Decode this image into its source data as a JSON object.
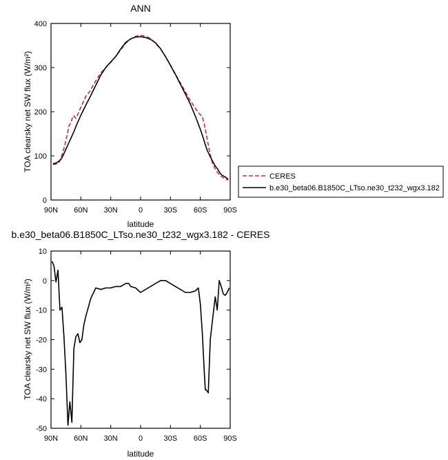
{
  "chart_data": [
    {
      "type": "line",
      "title": "ANN",
      "xlabel": "latitude",
      "ylabel": "TOA clearsky net SW flux (W/m²)",
      "xlim": [
        90,
        -90
      ],
      "ylim": [
        0,
        400
      ],
      "xticks": [
        90,
        60,
        30,
        0,
        -30,
        -60,
        -90
      ],
      "xtick_labels": [
        "90N",
        "60N",
        "30N",
        "0",
        "30S",
        "60S",
        "90S"
      ],
      "yticks": [
        0,
        100,
        200,
        300,
        400
      ],
      "ytick_labels": [
        "0",
        "100",
        "200",
        "300",
        "400"
      ],
      "grid": false,
      "legend": "right",
      "series": [
        {
          "name": "CERES",
          "color": "#d62728",
          "dash": "dashed",
          "x": [
            88,
            86,
            84,
            82,
            80,
            78,
            76,
            74,
            72,
            70,
            68,
            67,
            66,
            65,
            64,
            62,
            60,
            57,
            55,
            52,
            50,
            45,
            40,
            35,
            30,
            25,
            20,
            15,
            10,
            5,
            0,
            -5,
            -10,
            -15,
            -20,
            -25,
            -30,
            -35,
            -40,
            -45,
            -50,
            -55,
            -58,
            -60,
            -62,
            -64,
            -65,
            -66,
            -68,
            -70,
            -72,
            -75,
            -78,
            -80,
            -82,
            -85,
            -88
          ],
          "y": [
            80,
            81,
            82,
            85,
            95,
            108,
            125,
            145,
            168,
            175,
            190,
            191,
            187,
            185,
            189,
            200,
            210,
            225,
            235,
            243,
            250,
            270,
            288,
            300,
            312,
            325,
            340,
            355,
            365,
            371,
            373,
            371,
            366,
            355,
            342,
            325,
            306,
            285,
            265,
            245,
            225,
            208,
            198,
            193,
            188,
            172,
            160,
            148,
            125,
            103,
            85,
            70,
            60,
            55,
            52,
            48,
            45
          ]
        },
        {
          "name": "b.e30_beta06.B1850C_LTso.ne30_t232_wgx3.182",
          "color": "#000000",
          "dash": "solid",
          "x": [
            88,
            86,
            84,
            82,
            80,
            78,
            76,
            74,
            72,
            70,
            67,
            64,
            60,
            55,
            50,
            45,
            40,
            35,
            30,
            25,
            20,
            15,
            10,
            5,
            0,
            -5,
            -10,
            -15,
            -20,
            -25,
            -30,
            -35,
            -40,
            -45,
            -50,
            -55,
            -60,
            -63,
            -65,
            -67,
            -70,
            -73,
            -75,
            -78,
            -80,
            -82,
            -85,
            -88
          ],
          "y": [
            83,
            83,
            85,
            88,
            92,
            100,
            110,
            120,
            130,
            140,
            155,
            172,
            192,
            215,
            237,
            260,
            283,
            300,
            313,
            325,
            342,
            357,
            365,
            369,
            370,
            368,
            364,
            356,
            343,
            325,
            305,
            284,
            262,
            240,
            217,
            190,
            160,
            140,
            125,
            112,
            98,
            85,
            77,
            68,
            60,
            56,
            52,
            47
          ]
        }
      ]
    },
    {
      "type": "line",
      "title": "b.e30_beta06.B1850C_LTso.ne30_t232_wgx3.182 - CERES",
      "xlabel": "latitude",
      "ylabel": "TOA clearsky net SW flux (W/m²)",
      "xlim": [
        90,
        -90
      ],
      "ylim": [
        -50,
        10
      ],
      "xticks": [
        90,
        60,
        30,
        0,
        -30,
        -60,
        -90
      ],
      "xtick_labels": [
        "90N",
        "60N",
        "30N",
        "0",
        "30S",
        "60S",
        "90S"
      ],
      "yticks": [
        -50,
        -40,
        -30,
        -20,
        -10,
        0,
        10
      ],
      "ytick_labels": [
        "-50",
        "-40",
        "-30",
        "-20",
        "-10",
        "0",
        "10"
      ],
      "grid": false,
      "series": [
        {
          "color": "#000000",
          "dash": "solid",
          "x": [
            89,
            87,
            85,
            83,
            81,
            79,
            77,
            75,
            73,
            71,
            69,
            67,
            66,
            65,
            63,
            61,
            59,
            57,
            55,
            50,
            45,
            40,
            35,
            30,
            25,
            20,
            15,
            12,
            10,
            5,
            0,
            -5,
            -10,
            -15,
            -20,
            -25,
            -30,
            -35,
            -40,
            -45,
            -50,
            -55,
            -58,
            -60,
            -62,
            -64,
            -65,
            -66,
            -68,
            -70,
            -72,
            -75,
            -77,
            -79,
            -81,
            -83,
            -85,
            -87,
            -89
          ],
          "y": [
            6.5,
            5,
            -0.5,
            3.5,
            -10,
            -9,
            -19,
            -32,
            -49,
            -41,
            -48,
            -23,
            -21,
            -19,
            -18,
            -21,
            -20,
            -15,
            -12,
            -6,
            -2.5,
            -3,
            -2.5,
            -2.5,
            -2,
            -2,
            -1,
            -1,
            -2,
            -2.5,
            -4,
            -3,
            -2,
            -1,
            0,
            0,
            -1,
            -2,
            -3,
            -4,
            -4,
            -3.5,
            -2.5,
            -8,
            -18,
            -31,
            -37,
            -37,
            -38,
            -20,
            -14,
            -5.5,
            -10,
            0,
            -2,
            -4.5,
            -5,
            -4,
            -2.5
          ]
        }
      ]
    }
  ]
}
